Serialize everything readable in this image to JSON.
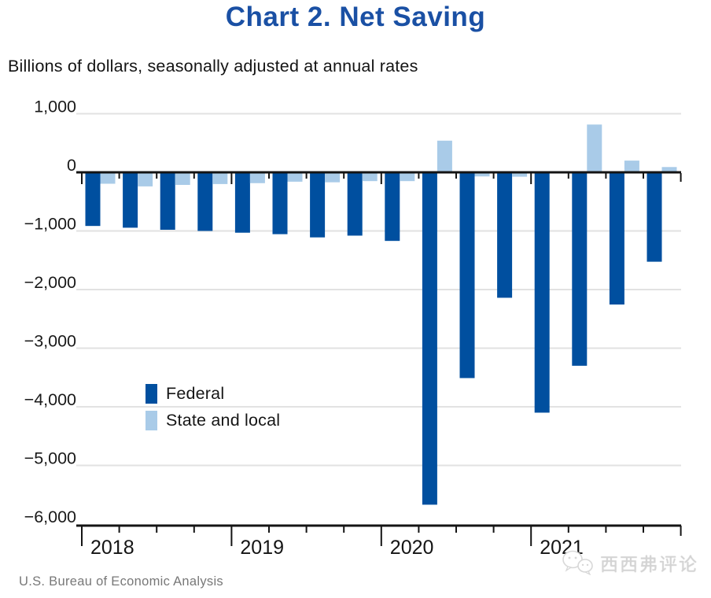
{
  "header": {
    "title": "Chart 2. Net Saving",
    "subtitle": "Billions of dollars, seasonally adjusted at annual rates"
  },
  "legend": {
    "items": [
      {
        "label": "Federal",
        "color": "#004f9f"
      },
      {
        "label": "State and local",
        "color": "#a9cbe8"
      }
    ]
  },
  "source": {
    "text": "U.S. Bureau of Economic Analysis"
  },
  "watermark": {
    "icon": "wechat-icon",
    "text": "西西弗评论"
  },
  "colors": {
    "title": "#1a50a4",
    "federal": "#004f9f",
    "state_local": "#a9cbe8",
    "gridline": "#e2e2e2",
    "axis": "#141414",
    "tick_label": "#191919",
    "source_text": "#787878",
    "watermark": "#d4d4d4"
  },
  "chart_data": {
    "type": "bar",
    "title": "Chart 2. Net Saving",
    "subtitle": "Billions of dollars, seasonally adjusted at annual rates",
    "categories": [
      "2018 Q1",
      "2018 Q2",
      "2018 Q3",
      "2018 Q4",
      "2019 Q1",
      "2019 Q2",
      "2019 Q3",
      "2019 Q4",
      "2020 Q1",
      "2020 Q2",
      "2020 Q3",
      "2020 Q4",
      "2021 Q1",
      "2021 Q2",
      "2021 Q3",
      "2021 Q4"
    ],
    "series": [
      {
        "name": "Federal",
        "color": "#004f9f",
        "values": [
          -915,
          -945,
          -980,
          -1000,
          -1030,
          -1055,
          -1110,
          -1080,
          -1170,
          -5670,
          -3510,
          -2140,
          -4100,
          -3300,
          -2255,
          -1525
        ]
      },
      {
        "name": "State and local",
        "color": "#a9cbe8",
        "values": [
          -195,
          -240,
          -215,
          -200,
          -185,
          -160,
          -170,
          -150,
          -150,
          540,
          -70,
          -75,
          -20,
          815,
          200,
          90
        ]
      }
    ],
    "ylim": [
      -6000,
      1000
    ],
    "ytick_interval": 1000,
    "yticks": [
      1000,
      0,
      -1000,
      -2000,
      -3000,
      -4000,
      -5000,
      -6000
    ],
    "ytick_labels": [
      "1,000",
      "0",
      "−1,000",
      "−2,000",
      "−3,000",
      "−4,000",
      "−5,000",
      "−6,000"
    ],
    "x_year_labels": [
      "2018",
      "2019",
      "2020",
      "2021"
    ],
    "grid": true,
    "legend_position": "inside-left"
  }
}
